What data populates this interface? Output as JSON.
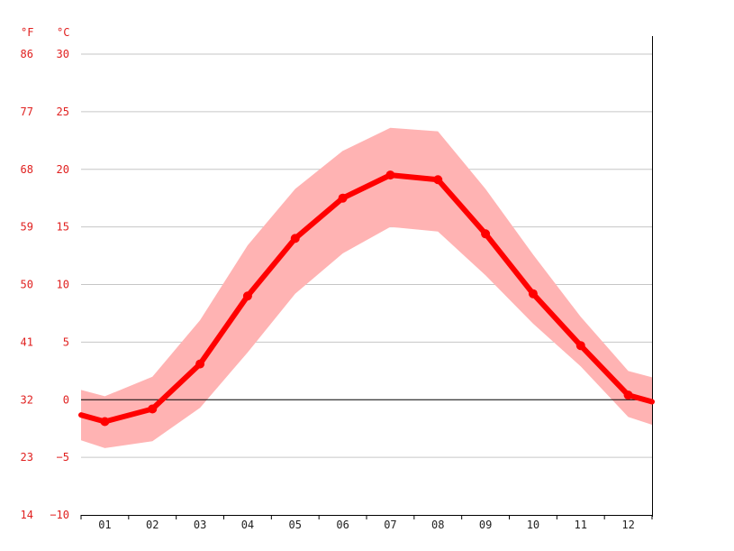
{
  "chart_data": {
    "type": "line",
    "title": "",
    "xlabel": "",
    "ylabel": "",
    "units": {
      "fahrenheit": "°F",
      "celsius": "°C"
    },
    "categories": [
      "01",
      "02",
      "03",
      "04",
      "05",
      "06",
      "07",
      "08",
      "09",
      "10",
      "11",
      "12"
    ],
    "ylim": [
      -10,
      30
    ],
    "y_ticks_celsius": [
      30,
      25,
      20,
      15,
      10,
      5,
      0,
      -5,
      -10
    ],
    "y_tick_labels_celsius": [
      "30",
      "25",
      "20",
      "15",
      "10",
      "5",
      "0",
      "−5",
      "−10"
    ],
    "y_tick_labels_fahrenheit": [
      "86",
      "77",
      "68",
      "59",
      "50",
      "41",
      "32",
      "23",
      "14"
    ],
    "grid": true,
    "series": [
      {
        "values": [
          -1.9,
          -0.8,
          3.1,
          9.0,
          14.0,
          17.5,
          19.5,
          19.1,
          14.4,
          9.2,
          4.7,
          0.4
        ]
      },
      {
        "values": [
          0.3,
          2.0,
          6.9,
          13.4,
          18.3,
          21.6,
          23.6,
          23.3,
          18.3,
          12.6,
          7.2,
          2.5
        ]
      },
      {
        "values": [
          -4.2,
          -3.6,
          -0.7,
          4.1,
          9.2,
          12.7,
          15.0,
          14.6,
          10.8,
          6.6,
          2.9,
          -1.5
        ]
      }
    ],
    "colors": {
      "line": "#ff0000",
      "band": "#ffb3b3",
      "grid": "#c6c6c6",
      "zero_line": "#000000",
      "axis_text": "#e0201f",
      "x_text": "#222222"
    }
  }
}
